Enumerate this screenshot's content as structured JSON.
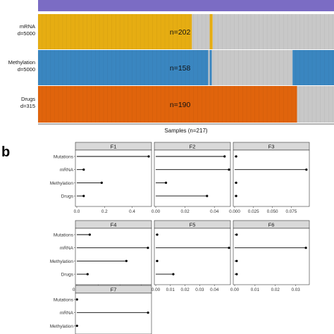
{
  "panel_a": {
    "rows": [
      {
        "label_lines": [
          "mRNA",
          "d=5000"
        ],
        "n_label": "n=202",
        "color": "#e6ad12",
        "observed": 202,
        "missing_color": "#c8c8c8"
      },
      {
        "label_lines": [
          "Methylation",
          "d=5000"
        ],
        "n_label": "n=158",
        "color": "#3a86c0",
        "observed": 158,
        "missing_color": "#c8c8c8"
      },
      {
        "label_lines": [
          "Drugs",
          "d=315"
        ],
        "n_label": "n=190",
        "color": "#e0640c",
        "observed": 190,
        "missing_color": "#c8c8c8"
      }
    ],
    "top_view_color": "#7b6cc4",
    "xlabel": "Samples (n=217)",
    "total_samples": 217
  },
  "panel_b": {
    "letter": "b"
  },
  "chart_data": {
    "type": "lollipop",
    "categories": [
      "Mutations",
      "mRNA",
      "Methylation",
      "Drugs"
    ],
    "facets": [
      {
        "title": "F1",
        "values": [
          0.52,
          0.05,
          0.18,
          0.05
        ],
        "xlim": [
          0,
          0.53
        ],
        "ticks": [
          0.0,
          0.2,
          0.4
        ],
        "tick_labels": [
          "0.0",
          "0.2",
          "0.4"
        ]
      },
      {
        "title": "F2",
        "values": [
          0.047,
          0.05,
          0.007,
          0.035
        ],
        "xlim": [
          0,
          0.05
        ],
        "ticks": [
          0.0,
          0.02,
          0.04
        ],
        "tick_labels": [
          "0.00",
          "0.02",
          "0.04"
        ]
      },
      {
        "title": "F3",
        "values": [
          0.002,
          0.095,
          0.002,
          0.002
        ],
        "xlim": [
          0,
          0.097
        ],
        "ticks": [
          0.0,
          0.025,
          0.05,
          0.075
        ],
        "tick_labels": [
          "0.000",
          "0.025",
          "0.050",
          "0.075"
        ]
      },
      {
        "title": "F4",
        "values": [
          0.006,
          0.033,
          0.023,
          0.005
        ],
        "xlim": [
          0,
          0.034
        ],
        "ticks": [
          0.0,
          0.01,
          0.02,
          0.03
        ],
        "tick_labels": [
          "0.00",
          "0.01",
          "0.02",
          "0.03"
        ]
      },
      {
        "title": "F5",
        "values": [
          0.001,
          0.05,
          0.001,
          0.012
        ],
        "xlim": [
          0,
          0.05
        ],
        "ticks": [
          0.0,
          0.01,
          0.02,
          0.03,
          0.04
        ],
        "tick_labels": [
          "0.00",
          "0.01",
          "0.02",
          "0.03",
          "0.04"
        ]
      },
      {
        "title": "F6",
        "values": [
          0.001,
          0.035,
          0.001,
          0.001
        ],
        "xlim": [
          0,
          0.036
        ],
        "ticks": [
          0.0,
          0.01,
          0.02,
          0.03
        ],
        "tick_labels": [
          "0.00",
          "0.01",
          "0.02",
          "0.03"
        ]
      },
      {
        "title": "F7",
        "values": [
          0.001,
          0.35,
          0.001
        ],
        "categories": [
          "Mutations",
          "mRNA",
          "Methylation"
        ],
        "xlim": [
          0,
          0.36
        ],
        "ticks": [],
        "tick_labels": []
      }
    ]
  }
}
